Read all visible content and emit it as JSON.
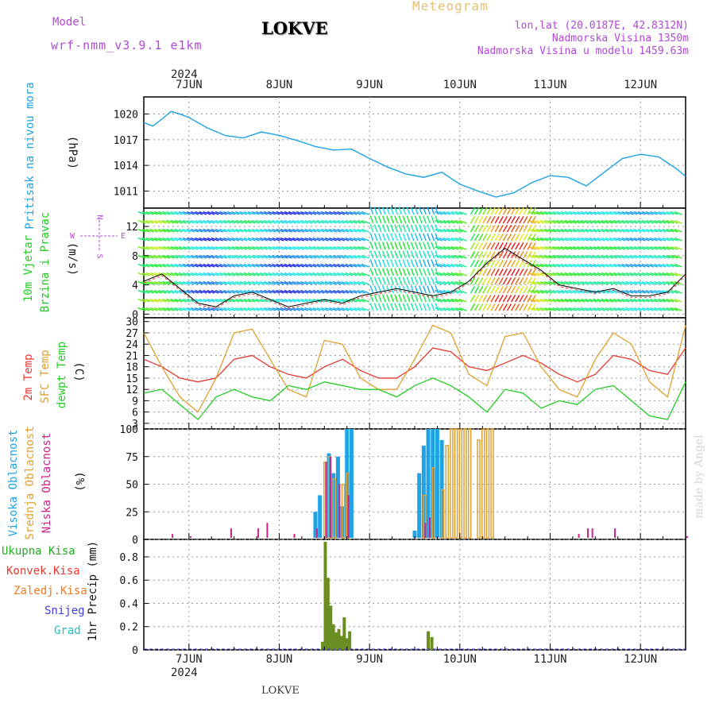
{
  "header": {
    "model_label": "Model",
    "model_name": "wrf-nmm_v3.9.1 e1km",
    "station": "LOKVE",
    "title": "Meteogram",
    "coords": "lon,lat (20.0187E, 42.8312N)",
    "altitude": "Nadmorska Visina 1350m",
    "model_altitude": "Nadmorska Visina u modelu 1459.63m",
    "year": "2024",
    "footer_station": "LOKVE",
    "watermark": "made by Angel"
  },
  "days": [
    "7JUN",
    "8JUN",
    "9JUN",
    "10JUN",
    "11JUN",
    "12JUN"
  ],
  "compass": {
    "n": "N",
    "s": "S",
    "w": "W",
    "e": "E"
  },
  "panels": {
    "pressure": {
      "title": "Pritisak na nivou mora",
      "unit": "(hPa)"
    },
    "wind": {
      "title1": "10m Vjetar",
      "title2": "Brzina i Pravac",
      "unit": "(m/s)"
    },
    "temp": {
      "l1": "2m Temp",
      "l2": "SFC Temp",
      "l3": "dewpt Temp",
      "unit": "(C)"
    },
    "cloud": {
      "l1": "Visoka Oblacnost",
      "l2": "Srednja Oblacnost",
      "l3": "Niska Oblacnost",
      "unit": "(%)"
    },
    "precip": {
      "l1": "Ukupna Kisa",
      "l2": "Konvek.Kisa",
      "l3": "Zaledj.Kisa",
      "l4": "Snijeg",
      "l5": "Grad",
      "unit": "1hr Precip (mm)"
    }
  },
  "colors": {
    "pressure": "#1fa2e6",
    "t2m": "#e8382f",
    "sfc": "#e0a030",
    "dew": "#22cc22",
    "high_cloud": "#1fa2e6",
    "mid_cloud": "#e0a030",
    "low_cloud": "#d0208a",
    "rain": "#6b8e23",
    "conv": "#e8382f",
    "frz": "#f07820",
    "snow": "#4040e0",
    "hail": "#20c0c0",
    "violet": "#b347d9",
    "gold": "#e8c072"
  },
  "chart_data": [
    {
      "type": "line",
      "title": "Pritisak na nivou mora",
      "ylabel": "(hPa)",
      "ylim": [
        1009,
        1022
      ],
      "yticks": [
        1011,
        1014,
        1017,
        1020
      ],
      "series": [
        {
          "name": "Pritisak na nivou mora",
          "x": [
            6.5,
            6.6,
            6.7,
            6.8,
            6.9,
            7.0,
            7.2,
            7.4,
            7.6,
            7.8,
            8.0,
            8.2,
            8.4,
            8.6,
            8.8,
            9.0,
            9.2,
            9.4,
            9.6,
            9.8,
            10.0,
            10.2,
            10.4,
            10.6,
            10.8,
            11.0,
            11.2,
            11.4,
            11.6,
            11.8,
            12.0,
            12.2,
            12.4,
            12.5
          ],
          "values": [
            1019.0,
            1018.6,
            1019.4,
            1020.3,
            1020.0,
            1019.6,
            1018.4,
            1017.5,
            1017.2,
            1017.9,
            1017.5,
            1016.9,
            1016.2,
            1015.8,
            1015.9,
            1014.8,
            1013.8,
            1013.0,
            1012.6,
            1013.2,
            1011.8,
            1011.0,
            1010.3,
            1010.8,
            1012.0,
            1012.8,
            1012.6,
            1011.6,
            1013.2,
            1014.8,
            1015.3,
            1015.0,
            1013.6,
            1012.7
          ]
        }
      ]
    },
    {
      "type": "line",
      "title": "10m Vjetar Brzina i Pravac",
      "ylabel": "(m/s)",
      "ylim": [
        -0.5,
        14.5
      ],
      "yticks": [
        0,
        4,
        8,
        12
      ],
      "series": [
        {
          "name": "10m Vjetar",
          "x": [
            6.5,
            6.7,
            6.9,
            7.1,
            7.3,
            7.5,
            7.7,
            7.9,
            8.1,
            8.3,
            8.5,
            8.7,
            8.9,
            9.1,
            9.3,
            9.5,
            9.7,
            9.9,
            10.1,
            10.3,
            10.5,
            10.7,
            10.9,
            11.1,
            11.3,
            11.5,
            11.7,
            11.9,
            12.1,
            12.3,
            12.5
          ],
          "values": [
            4.5,
            5.5,
            3.5,
            1.5,
            1.0,
            2.5,
            3.0,
            2.0,
            1.0,
            1.5,
            2.0,
            1.5,
            2.5,
            3.0,
            3.5,
            3.0,
            2.5,
            3.0,
            4.5,
            7.0,
            9.0,
            7.5,
            6.0,
            4.0,
            3.5,
            3.0,
            3.5,
            2.5,
            2.5,
            3.0,
            5.5
          ]
        }
      ]
    },
    {
      "type": "line",
      "title": "2m Temp / SFC Temp / dewpt Temp",
      "ylabel": "(C)",
      "ylim": [
        1.5,
        31
      ],
      "yticks": [
        3,
        6,
        9,
        12,
        15,
        18,
        21,
        24,
        27,
        30
      ],
      "series": [
        {
          "name": "2m Temp",
          "x": [
            6.5,
            6.7,
            6.9,
            7.1,
            7.3,
            7.5,
            7.7,
            7.9,
            8.1,
            8.3,
            8.5,
            8.7,
            8.9,
            9.1,
            9.3,
            9.5,
            9.7,
            9.9,
            10.1,
            10.3,
            10.5,
            10.7,
            10.9,
            11.1,
            11.3,
            11.5,
            11.7,
            11.9,
            12.1,
            12.3,
            12.5
          ],
          "values": [
            20,
            18,
            15,
            14,
            15,
            20,
            21,
            18,
            16,
            15,
            18,
            20,
            17,
            15,
            15,
            18,
            23,
            22,
            18,
            17,
            19,
            21,
            19,
            16,
            14,
            16,
            21,
            20,
            17,
            16,
            23
          ]
        },
        {
          "name": "SFC Temp",
          "x": [
            6.5,
            6.7,
            6.9,
            7.1,
            7.3,
            7.5,
            7.7,
            7.9,
            8.1,
            8.3,
            8.5,
            8.7,
            8.9,
            9.1,
            9.3,
            9.5,
            9.7,
            9.9,
            10.1,
            10.3,
            10.5,
            10.7,
            10.9,
            11.1,
            11.3,
            11.5,
            11.7,
            11.9,
            12.1,
            12.3,
            12.5
          ],
          "values": [
            27,
            18,
            10,
            6,
            15,
            27,
            28,
            20,
            12,
            10,
            25,
            24,
            15,
            12,
            12,
            20,
            29,
            27,
            16,
            13,
            26,
            27,
            18,
            12,
            10,
            20,
            27,
            24,
            14,
            10,
            29
          ]
        },
        {
          "name": "dewpt Temp",
          "x": [
            6.5,
            6.7,
            6.9,
            7.1,
            7.3,
            7.5,
            7.7,
            7.9,
            8.1,
            8.3,
            8.5,
            8.7,
            8.9,
            9.1,
            9.3,
            9.5,
            9.7,
            9.9,
            10.1,
            10.3,
            10.5,
            10.7,
            10.9,
            11.1,
            11.3,
            11.5,
            11.7,
            11.9,
            12.1,
            12.3,
            12.5
          ],
          "values": [
            11,
            12,
            8,
            4,
            10,
            12,
            10,
            9,
            13,
            12,
            14,
            13,
            12,
            12,
            10,
            13,
            15,
            13,
            10,
            6,
            12,
            11,
            7,
            9,
            8,
            12,
            13,
            9,
            5,
            4,
            14
          ]
        }
      ]
    },
    {
      "type": "bar",
      "title": "Visoka / Srednja / Niska Oblacnost",
      "ylabel": "(%)",
      "ylim": [
        0,
        100
      ],
      "yticks": [
        0,
        25,
        50,
        75,
        100
      ],
      "series": [
        {
          "name": "Visoka Oblacnost",
          "x": [
            8.4,
            8.45,
            8.55,
            8.6,
            8.65,
            8.7,
            8.75,
            8.8,
            9.5,
            9.55,
            9.6,
            9.65,
            9.7,
            9.75,
            9.8
          ],
          "values": [
            25,
            40,
            78,
            60,
            75,
            30,
            100,
            100,
            8,
            60,
            85,
            100,
            100,
            100,
            90
          ]
        },
        {
          "name": "Srednja Oblacnost",
          "x": [
            8.5,
            8.55,
            8.6,
            8.7,
            8.75,
            9.6,
            9.7,
            9.8,
            9.85,
            9.9,
            9.95,
            10.0,
            10.05,
            10.1,
            10.2,
            10.25,
            10.3,
            10.35
          ],
          "values": [
            70,
            75,
            55,
            50,
            60,
            40,
            65,
            45,
            85,
            100,
            100,
            100,
            100,
            100,
            90,
            100,
            100,
            100
          ]
        },
        {
          "name": "Niska Oblacnost",
          "x": [
            6.8,
            7.0,
            7.45,
            7.75,
            7.85,
            8.15,
            8.4,
            8.5,
            8.55,
            8.65,
            8.75,
            9.6,
            9.65,
            11.3,
            11.4,
            11.45,
            11.7,
            12.5
          ],
          "values": [
            5,
            3,
            10,
            10,
            15,
            5,
            10,
            70,
            75,
            50,
            40,
            15,
            20,
            5,
            10,
            10,
            10,
            3
          ]
        }
      ]
    },
    {
      "type": "bar",
      "title": "1hr Precip",
      "ylabel": "1hr Precip (mm)",
      "ylim": [
        0,
        0.95
      ],
      "yticks": [
        0,
        0.2,
        0.4,
        0.6,
        0.8
      ],
      "series": [
        {
          "name": "Ukupna Kisa",
          "x": [
            8.48,
            8.51,
            8.54,
            8.57,
            8.6,
            8.63,
            8.66,
            8.69,
            8.72,
            8.75,
            8.78,
            9.65,
            9.69
          ],
          "values": [
            0.07,
            0.93,
            0.62,
            0.38,
            0.22,
            0.15,
            0.18,
            0.12,
            0.28,
            0.1,
            0.16,
            0.16,
            0.11
          ]
        }
      ]
    }
  ]
}
